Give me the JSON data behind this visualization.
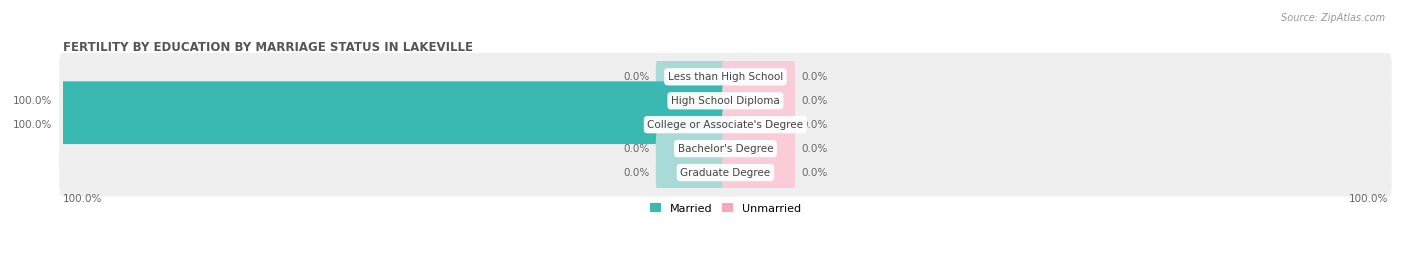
{
  "title": "FERTILITY BY EDUCATION BY MARRIAGE STATUS IN LAKEVILLE",
  "source": "Source: ZipAtlas.com",
  "categories": [
    "Less than High School",
    "High School Diploma",
    "College or Associate's Degree",
    "Bachelor's Degree",
    "Graduate Degree"
  ],
  "married": [
    0.0,
    100.0,
    100.0,
    0.0,
    0.0
  ],
  "unmarried": [
    0.0,
    0.0,
    0.0,
    0.0,
    0.0
  ],
  "married_color": "#3ab8b2",
  "unmarried_color": "#f7a8bc",
  "married_zero_color": "#a8dbd8",
  "unmarried_zero_color": "#f9ccd8",
  "row_bg_color": "#efefef",
  "title_color": "#555555",
  "value_color": "#666666",
  "label_color": "#444444",
  "legend_married": "Married",
  "legend_unmarried": "Unmarried",
  "background_color": "#ffffff",
  "bottom_left_label": "100.0%",
  "bottom_right_label": "100.0%",
  "zero_bar_width": 10,
  "bar_height": 0.62,
  "total_width": 100
}
